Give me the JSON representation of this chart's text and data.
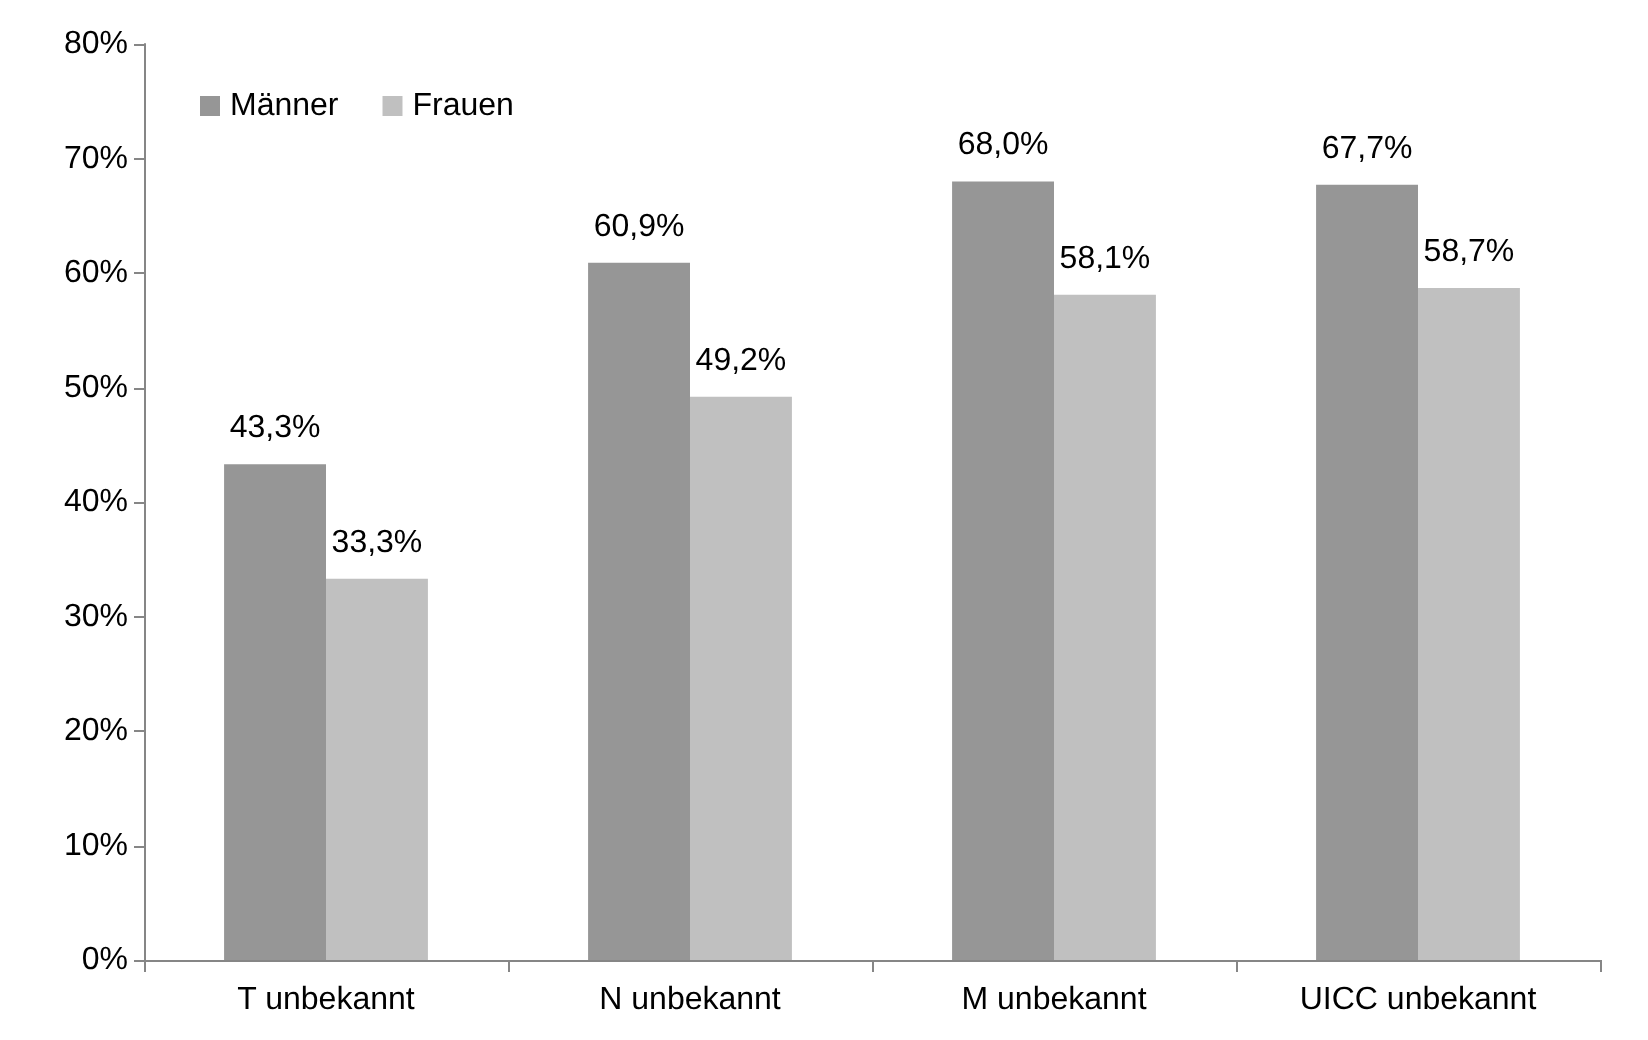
{
  "chart_data": {
    "type": "bar",
    "categories": [
      "T unbekannt",
      "N unbekannt",
      "M unbekannt",
      "UICC unbekannt"
    ],
    "series": [
      {
        "name": "Männer",
        "color": "#969696",
        "values": [
          43.3,
          60.9,
          68.0,
          67.7
        ],
        "value_labels": [
          "43,3%",
          "60,9%",
          "68,0%",
          "67,7%"
        ]
      },
      {
        "name": "Frauen",
        "color": "#c0c0c0",
        "values": [
          33.3,
          49.2,
          58.1,
          58.7
        ],
        "value_labels": [
          "33,3%",
          "49,2%",
          "58,1%",
          "58,7%"
        ]
      }
    ],
    "ylim": [
      0,
      80
    ],
    "yticks": [
      {
        "value": 0,
        "label": "0%"
      },
      {
        "value": 10,
        "label": "10%"
      },
      {
        "value": 20,
        "label": "20%"
      },
      {
        "value": 30,
        "label": "30%"
      },
      {
        "value": 40,
        "label": "40%"
      },
      {
        "value": 50,
        "label": "50%"
      },
      {
        "value": 60,
        "label": "60%"
      },
      {
        "value": 70,
        "label": "70%"
      },
      {
        "value": 80,
        "label": "80%"
      }
    ],
    "grid": false,
    "legend": "top left"
  }
}
